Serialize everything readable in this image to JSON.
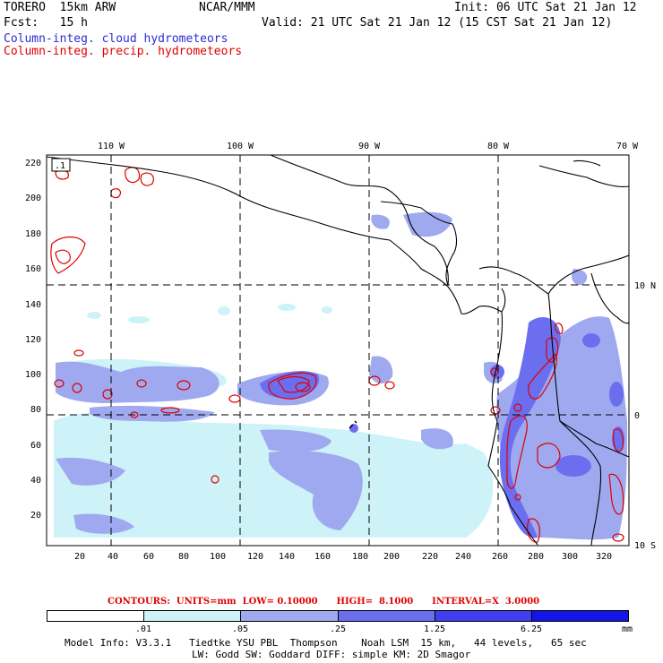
{
  "header": {
    "model": "TORERO  15km ARW",
    "org": "NCAR/MMM",
    "init": "Init: 06 UTC Sat 21 Jan 12",
    "fcst": "Fcst:   15 h",
    "valid": "Valid: 21 UTC Sat 21 Jan 12 (15 CST Sat 21 Jan 12)",
    "field1": "Column-integ. cloud hydrometeors",
    "field2": "Column-integ. precip. hydrometeors"
  },
  "map": {
    "lon_labels": [
      "110 W",
      "100 W",
      "90 W",
      "80 W",
      "70 W"
    ],
    "lat_labels": [
      "10 N",
      "0",
      "10 S"
    ],
    "y_ticks": [
      "220",
      "200",
      "180",
      "160",
      "140",
      "120",
      "100",
      "80",
      "60",
      "40",
      "20"
    ],
    "x_ticks": [
      "20",
      "40",
      "60",
      "80",
      "100",
      "120",
      "140",
      "160",
      "180",
      "200",
      "220",
      "240",
      "260",
      "280",
      "300",
      "320"
    ],
    "corner_label": ".1",
    "colors": {
      "fill1": "#cdf2f8",
      "fill2": "#9fa9f0",
      "fill3": "#6c6ef0",
      "fill4": "#3f3ff0",
      "fill5": "#1515e8",
      "precip_contour": "#e00000",
      "coast": "#000000"
    }
  },
  "contours_line": "CONTOURS:  UNITS=mm  LOW= 0.10000      HIGH=  8.1000      INTERVAL=X  3.0000",
  "colorbar": {
    "labels": [
      ".01",
      ".05",
      ".25",
      "1.25",
      "6.25"
    ],
    "units": "mm",
    "colors": [
      "#ffffff",
      "#cdf2f8",
      "#9fa9f0",
      "#6c6ef0",
      "#3f3ff0",
      "#1515e8"
    ]
  },
  "footer": {
    "line1": "Model Info: V3.3.1   Tiedtke YSU PBL  Thompson    Noah LSM  15 km,   44 levels,   65 sec",
    "line2": "LW: Godd SW: Goddard DIFF: simple KM: 2D Smagor"
  }
}
